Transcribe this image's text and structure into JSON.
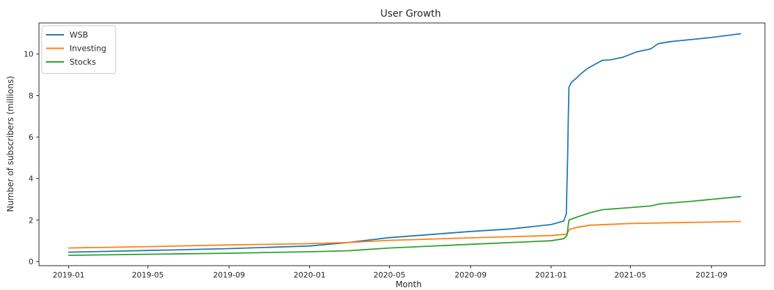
{
  "chart_data": {
    "type": "line",
    "title": "User Growth",
    "xlabel": "Month",
    "ylabel": "Number of subscribers (millions)",
    "x_axis": {
      "type": "date",
      "range": [
        "2018-11-17",
        "2021-11-21"
      ],
      "ticks": [
        "2019-01",
        "2019-05",
        "2019-09",
        "2020-01",
        "2020-05",
        "2020-09",
        "2021-01",
        "2021-05",
        "2021-09"
      ]
    },
    "y_axis": {
      "range": [
        -0.2,
        11.5
      ],
      "ticks": [
        "0",
        "2",
        "4",
        "6",
        "8",
        "10"
      ]
    },
    "grid": false,
    "legend": {
      "position": "top-left",
      "entries": [
        "WSB",
        "Investing",
        "Stocks"
      ]
    },
    "colors": {
      "WSB": "#1f77b4",
      "Investing": "#ff7f0e",
      "Stocks": "#2ca02c"
    },
    "series": [
      {
        "name": "WSB",
        "points": [
          [
            "2019-01-01",
            0.45
          ],
          [
            "2019-05-01",
            0.53
          ],
          [
            "2019-09-01",
            0.62
          ],
          [
            "2020-01-01",
            0.75
          ],
          [
            "2020-03-01",
            0.92
          ],
          [
            "2020-05-01",
            1.15
          ],
          [
            "2020-07-01",
            1.3
          ],
          [
            "2020-09-01",
            1.45
          ],
          [
            "2020-11-01",
            1.57
          ],
          [
            "2021-01-01",
            1.78
          ],
          [
            "2021-01-20",
            1.95
          ],
          [
            "2021-01-24",
            2.3
          ],
          [
            "2021-01-26",
            5.0
          ],
          [
            "2021-01-27",
            6.8
          ],
          [
            "2021-01-28",
            8.4
          ],
          [
            "2021-02-01",
            8.65
          ],
          [
            "2021-02-07",
            8.8
          ],
          [
            "2021-02-15",
            9.05
          ],
          [
            "2021-02-25",
            9.3
          ],
          [
            "2021-03-08",
            9.5
          ],
          [
            "2021-03-20",
            9.7
          ],
          [
            "2021-04-01",
            9.72
          ],
          [
            "2021-04-20",
            9.85
          ],
          [
            "2021-05-10",
            10.1
          ],
          [
            "2021-06-01",
            10.25
          ],
          [
            "2021-06-12",
            10.5
          ],
          [
            "2021-07-01",
            10.6
          ],
          [
            "2021-08-01",
            10.7
          ],
          [
            "2021-09-01",
            10.8
          ],
          [
            "2021-10-15",
            10.98
          ]
        ]
      },
      {
        "name": "Investing",
        "points": [
          [
            "2019-01-01",
            0.65
          ],
          [
            "2019-05-01",
            0.72
          ],
          [
            "2019-09-01",
            0.8
          ],
          [
            "2020-01-01",
            0.86
          ],
          [
            "2020-03-01",
            0.92
          ],
          [
            "2020-05-01",
            1.02
          ],
          [
            "2020-09-01",
            1.14
          ],
          [
            "2021-01-01",
            1.25
          ],
          [
            "2021-01-25",
            1.32
          ],
          [
            "2021-01-29",
            1.55
          ],
          [
            "2021-02-10",
            1.65
          ],
          [
            "2021-03-01",
            1.75
          ],
          [
            "2021-05-01",
            1.83
          ],
          [
            "2021-07-01",
            1.87
          ],
          [
            "2021-10-15",
            1.93
          ]
        ]
      },
      {
        "name": "Stocks",
        "points": [
          [
            "2019-01-01",
            0.3
          ],
          [
            "2019-09-01",
            0.4
          ],
          [
            "2020-01-01",
            0.47
          ],
          [
            "2020-03-01",
            0.52
          ],
          [
            "2020-05-01",
            0.65
          ],
          [
            "2020-07-01",
            0.74
          ],
          [
            "2020-09-01",
            0.83
          ],
          [
            "2021-01-01",
            1.0
          ],
          [
            "2021-01-20",
            1.1
          ],
          [
            "2021-01-25",
            1.25
          ],
          [
            "2021-01-28",
            2.0
          ],
          [
            "2021-02-10",
            2.15
          ],
          [
            "2021-03-01",
            2.35
          ],
          [
            "2021-03-20",
            2.5
          ],
          [
            "2021-05-01",
            2.6
          ],
          [
            "2021-06-01",
            2.68
          ],
          [
            "2021-06-15",
            2.78
          ],
          [
            "2021-08-01",
            2.9
          ],
          [
            "2021-10-15",
            3.13
          ]
        ]
      }
    ]
  }
}
